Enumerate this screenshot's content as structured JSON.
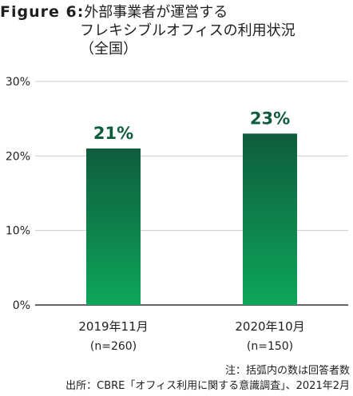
{
  "title": {
    "prefix": "Figure 6:",
    "line1": "外部事業者が運営する",
    "line2": "フレキシブルオフィスの利用状況",
    "line3": "（全国）"
  },
  "colors": {
    "bar_top": "#0e5c3c",
    "bar_bottom": "#0da65a",
    "label": "#0e5c3c",
    "grid": "#cccccc",
    "axis": "#333333"
  },
  "chart_data": {
    "type": "bar",
    "categories": [
      "2019年11月",
      "2020年10月"
    ],
    "sublabels": [
      "(n=260)",
      "(n=150)"
    ],
    "values": [
      21,
      23
    ],
    "data_labels": [
      "21%",
      "23%"
    ],
    "ylim": [
      0,
      30
    ],
    "yticks": [
      0,
      10,
      20,
      30
    ],
    "ytick_labels": [
      "0%",
      "10%",
      "20%",
      "30%"
    ],
    "grid": true
  },
  "footnotes": {
    "note": "注：括弧内の数は回答者数",
    "source": "出所：CBRE「オフィス利用に関する意識調査」、2021年2月"
  }
}
